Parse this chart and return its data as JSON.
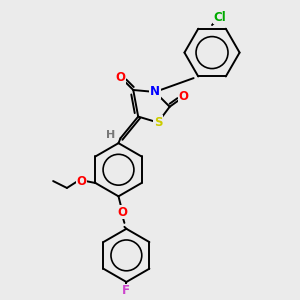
{
  "background_color": "#ebebeb",
  "bond_color": "#000000",
  "atom_colors": {
    "O": "#ff0000",
    "N": "#0000ff",
    "S": "#cccc00",
    "Cl": "#00aa00",
    "F": "#cc44cc",
    "H": "#777777",
    "C": "#000000"
  },
  "figsize": [
    3.0,
    3.0
  ],
  "dpi": 100,
  "lw": 1.4,
  "fs": 8.5
}
